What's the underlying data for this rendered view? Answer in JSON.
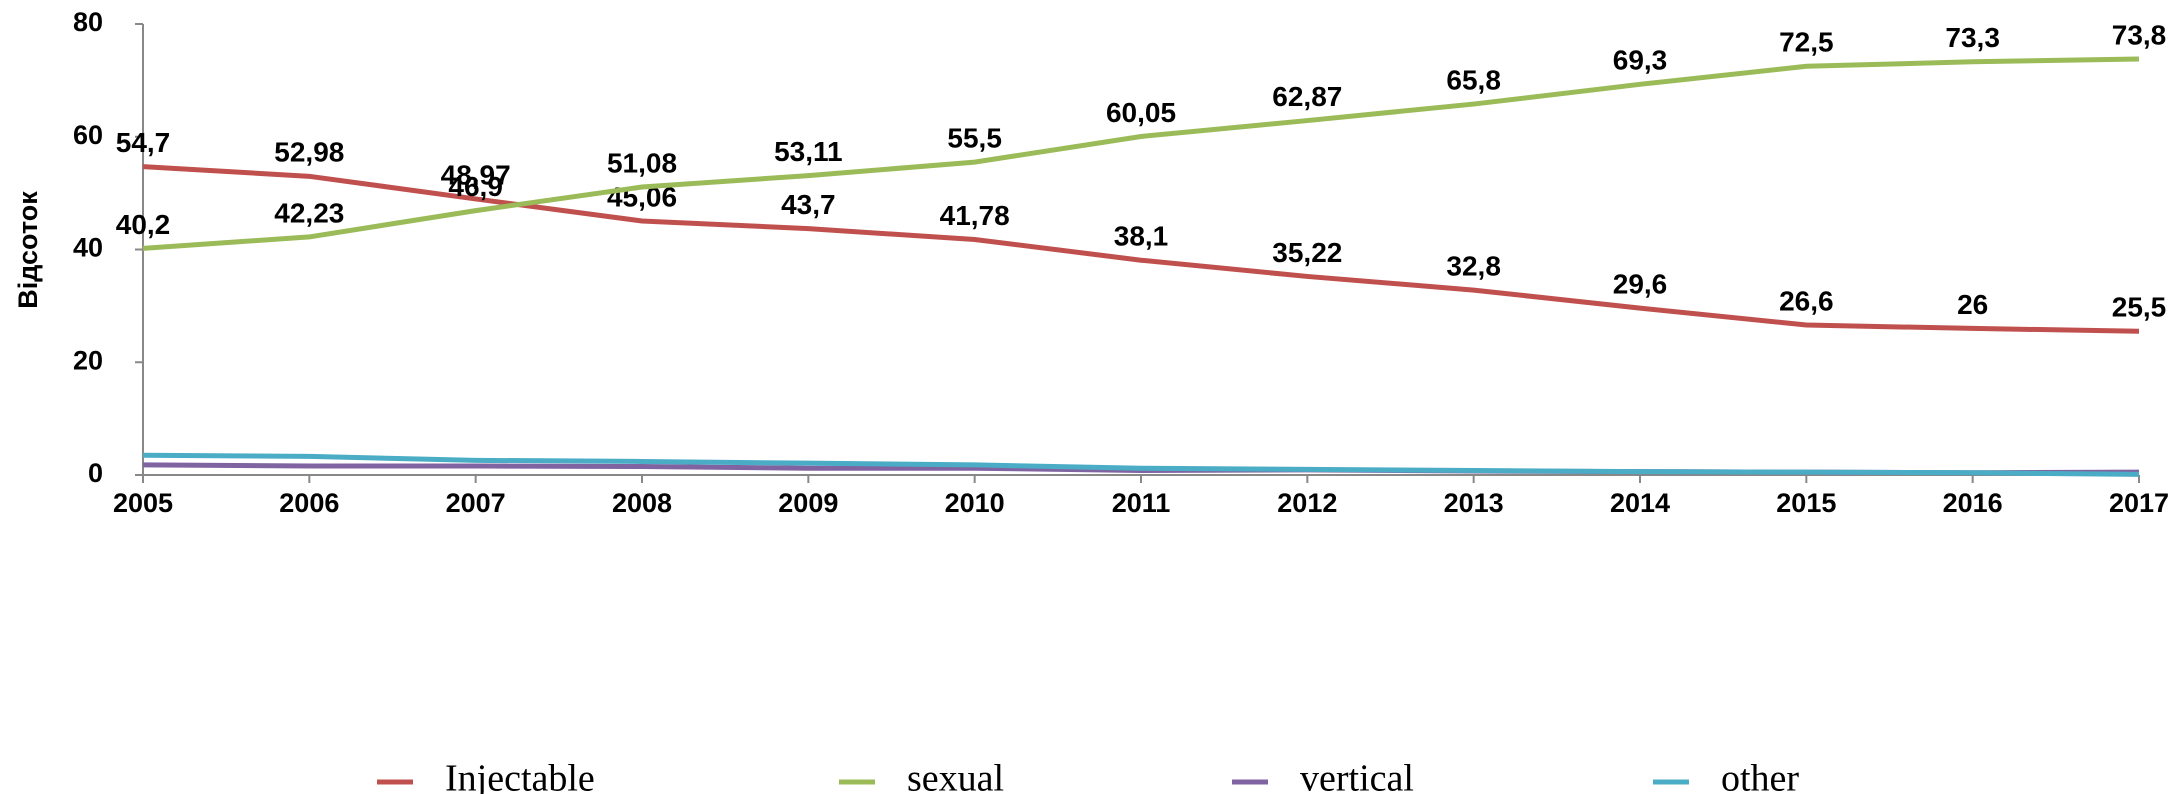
{
  "chart_data": {
    "type": "line",
    "y_label": "Відсоток",
    "categories": [
      "2005",
      "2006",
      "2007",
      "2008",
      "2009",
      "2010",
      "2011",
      "2012",
      "2013",
      "2014",
      "2015",
      "2016",
      "2017"
    ],
    "ylim": [
      0,
      80
    ],
    "yticks": [
      0,
      20,
      40,
      60,
      80
    ],
    "series": [
      {
        "name": "Injectable",
        "color": "#c0504d",
        "values": [
          54.7,
          52.98,
          48.97,
          45.06,
          43.7,
          41.78,
          38.1,
          35.22,
          32.8,
          29.6,
          26.6,
          26,
          25.5
        ],
        "value_labels": [
          "54,7",
          "52,98",
          "48,97",
          "45,06",
          "43,7",
          "41,78",
          "38,1",
          "35,22",
          "32,8",
          "29,6",
          "26,6",
          "26",
          "25,5"
        ]
      },
      {
        "name": "sexual",
        "color": "#9bbb59",
        "values": [
          40.2,
          42.23,
          46.9,
          51.08,
          53.11,
          55.5,
          60.05,
          62.87,
          65.8,
          69.3,
          72.5,
          73.3,
          73.8
        ],
        "value_labels": [
          "40,2",
          "42,23",
          "46,9",
          "51,08",
          "53,11",
          "55,5",
          "60,05",
          "62,87",
          "65,8",
          "69,3",
          "72,5",
          "73,3",
          "73,8"
        ]
      },
      {
        "name": "vertical",
        "color": "#8064a2",
        "values": [
          1.8,
          1.6,
          1.6,
          1.5,
          1.2,
          1.2,
          0.8,
          0.9,
          0.7,
          0.6,
          0.5,
          0.4,
          0.5
        ]
      },
      {
        "name": "other",
        "color": "#4bacc6",
        "values": [
          3.5,
          3.3,
          2.6,
          2.4,
          2.1,
          1.8,
          1.2,
          1.0,
          0.8,
          0.6,
          0.5,
          0.4,
          0.1
        ]
      }
    ]
  }
}
